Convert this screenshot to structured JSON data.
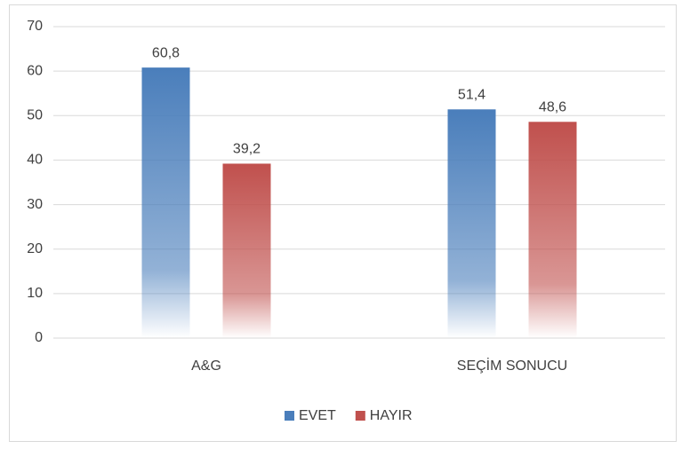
{
  "chart_data": {
    "type": "bar",
    "categories": [
      "A&G",
      "SEÇİM SONUCU"
    ],
    "series": [
      {
        "name": "EVET",
        "color": "#4a7ebb",
        "values": [
          60.8,
          51.4
        ],
        "value_labels": [
          "60,8",
          "51,4"
        ]
      },
      {
        "name": "HAYIR",
        "color": "#c0504d",
        "values": [
          39.2,
          48.6
        ],
        "value_labels": [
          "39,2",
          "48,6"
        ]
      }
    ],
    "ylim": [
      0,
      70
    ],
    "yticks": [
      0,
      10,
      20,
      30,
      40,
      50,
      60,
      70
    ],
    "grid": true,
    "legend": "bottom"
  }
}
